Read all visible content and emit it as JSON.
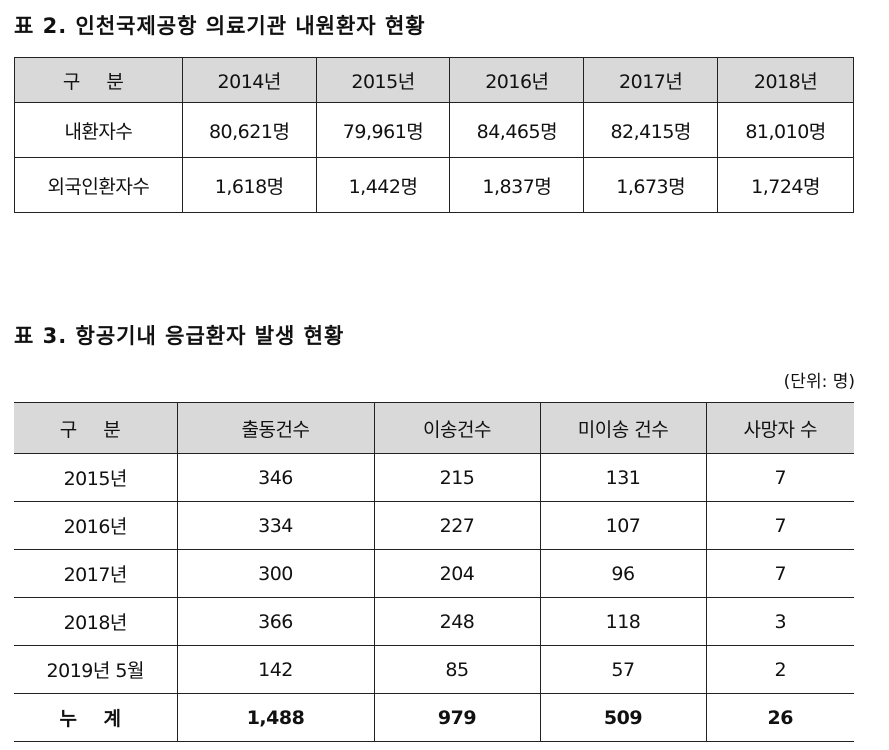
{
  "table2": {
    "title": "표 2. 인천국제공항 의료기관 내원환자 현황",
    "headers": [
      "구 분",
      "2014년",
      "2015년",
      "2016년",
      "2017년",
      "2018년"
    ],
    "rows": [
      [
        "내환자수",
        "80,621명",
        "79,961명",
        "84,465명",
        "82,415명",
        "81,010명"
      ],
      [
        "외국인환자수",
        "1,618명",
        "1,442명",
        "1,837명",
        "1,673명",
        "1,724명"
      ]
    ]
  },
  "table3": {
    "title": "표 3. 항공기내 응급환자 발생 현황",
    "unit": "(단위: 명)",
    "headers": [
      "구 분",
      "출동건수",
      "이송건수",
      "미이송 건수",
      "사망자 수"
    ],
    "rows": [
      [
        "2015년",
        "346",
        "215",
        "131",
        "7"
      ],
      [
        "2016년",
        "334",
        "227",
        "107",
        "7"
      ],
      [
        "2017년",
        "300",
        "204",
        "96",
        "7"
      ],
      [
        "2018년",
        "366",
        "248",
        "118",
        "3"
      ],
      [
        "2019년 5월",
        "142",
        "85",
        "57",
        "2"
      ]
    ],
    "total": [
      "누 계",
      "1,488",
      "979",
      "509",
      "26"
    ]
  }
}
